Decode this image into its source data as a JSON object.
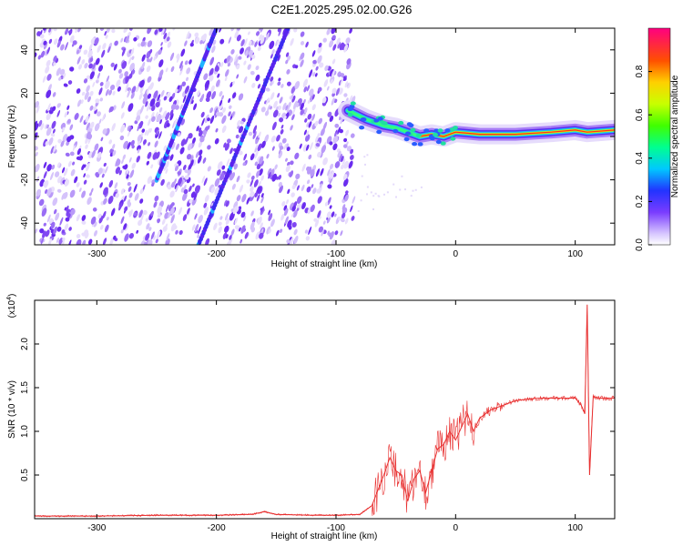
{
  "title": "C2E1.2025.295.02.00.G26",
  "colors": {
    "snr_line": "#e83030",
    "frame": "#000000"
  },
  "chart_data": [
    {
      "type": "heatmap",
      "xlabel": "Height of straight line (km)",
      "ylabel": "Frequency (Hz)",
      "xlim": [
        -352,
        133
      ],
      "ylim": [
        -50,
        50
      ],
      "x_ticks": [
        -300,
        -200,
        -100,
        0,
        100
      ],
      "y_ticks": [
        -40,
        -20,
        0,
        20,
        40
      ],
      "colorbar": {
        "label": "Normalized spectral amplitude",
        "range": [
          0,
          1
        ],
        "ticks": [
          "0.0",
          "0.2",
          "0.4",
          "0.6",
          "0.8"
        ],
        "colormap": "rainbow"
      },
      "features": {
        "noise_region_x": [
          -352,
          -85
        ],
        "carrier_line": {
          "x": [
            -90,
            -75,
            -60,
            -50,
            -40,
            -30,
            -20,
            -10,
            0,
            20,
            50,
            80,
            100,
            110,
            133
          ],
          "frequency": [
            12,
            8,
            5,
            4,
            2,
            0,
            1,
            0,
            2,
            1,
            1,
            2,
            3,
            2,
            3
          ]
        },
        "diagonal_traces": [
          {
            "x": [
              -215,
              -140
            ],
            "frequency": [
              -50,
              50
            ]
          },
          {
            "x": [
              -250,
              -200
            ],
            "frequency": [
              -20,
              50
            ]
          }
        ]
      }
    },
    {
      "type": "line",
      "xlabel": "Height of straight line (km)",
      "ylabel": "SNR (10 * v/v)",
      "y_multiplier": "(x10",
      "y_multiplier_exp": "4",
      "y_multiplier_close": ")",
      "xlim": [
        -352,
        133
      ],
      "ylim": [
        0,
        2.5
      ],
      "x_ticks": [
        -300,
        -200,
        -100,
        0,
        100
      ],
      "y_ticks": [
        "0.5",
        "1.0",
        "1.5",
        "2.0"
      ],
      "series": [
        {
          "x": [
            -352,
            -300,
            -250,
            -200,
            -170,
            -160,
            -150,
            -120,
            -100,
            -80,
            -70,
            -60,
            -55,
            -50,
            -45,
            -40,
            -35,
            -30,
            -25,
            -20,
            -15,
            -10,
            -5,
            0,
            5,
            10,
            15,
            20,
            30,
            40,
            50,
            60,
            70,
            80,
            90,
            100,
            105,
            108,
            110,
            112,
            115,
            120,
            133
          ],
          "y": [
            0.03,
            0.03,
            0.04,
            0.04,
            0.05,
            0.08,
            0.05,
            0.04,
            0.04,
            0.05,
            0.15,
            0.5,
            0.7,
            0.55,
            0.5,
            0.2,
            0.45,
            0.55,
            0.3,
            0.55,
            0.8,
            0.85,
            1.0,
            0.9,
            1.05,
            1.2,
            1.0,
            1.15,
            1.25,
            1.3,
            1.35,
            1.37,
            1.38,
            1.38,
            1.38,
            1.38,
            1.3,
            1.2,
            2.45,
            0.5,
            1.4,
            1.38,
            1.38
          ]
        }
      ]
    }
  ]
}
